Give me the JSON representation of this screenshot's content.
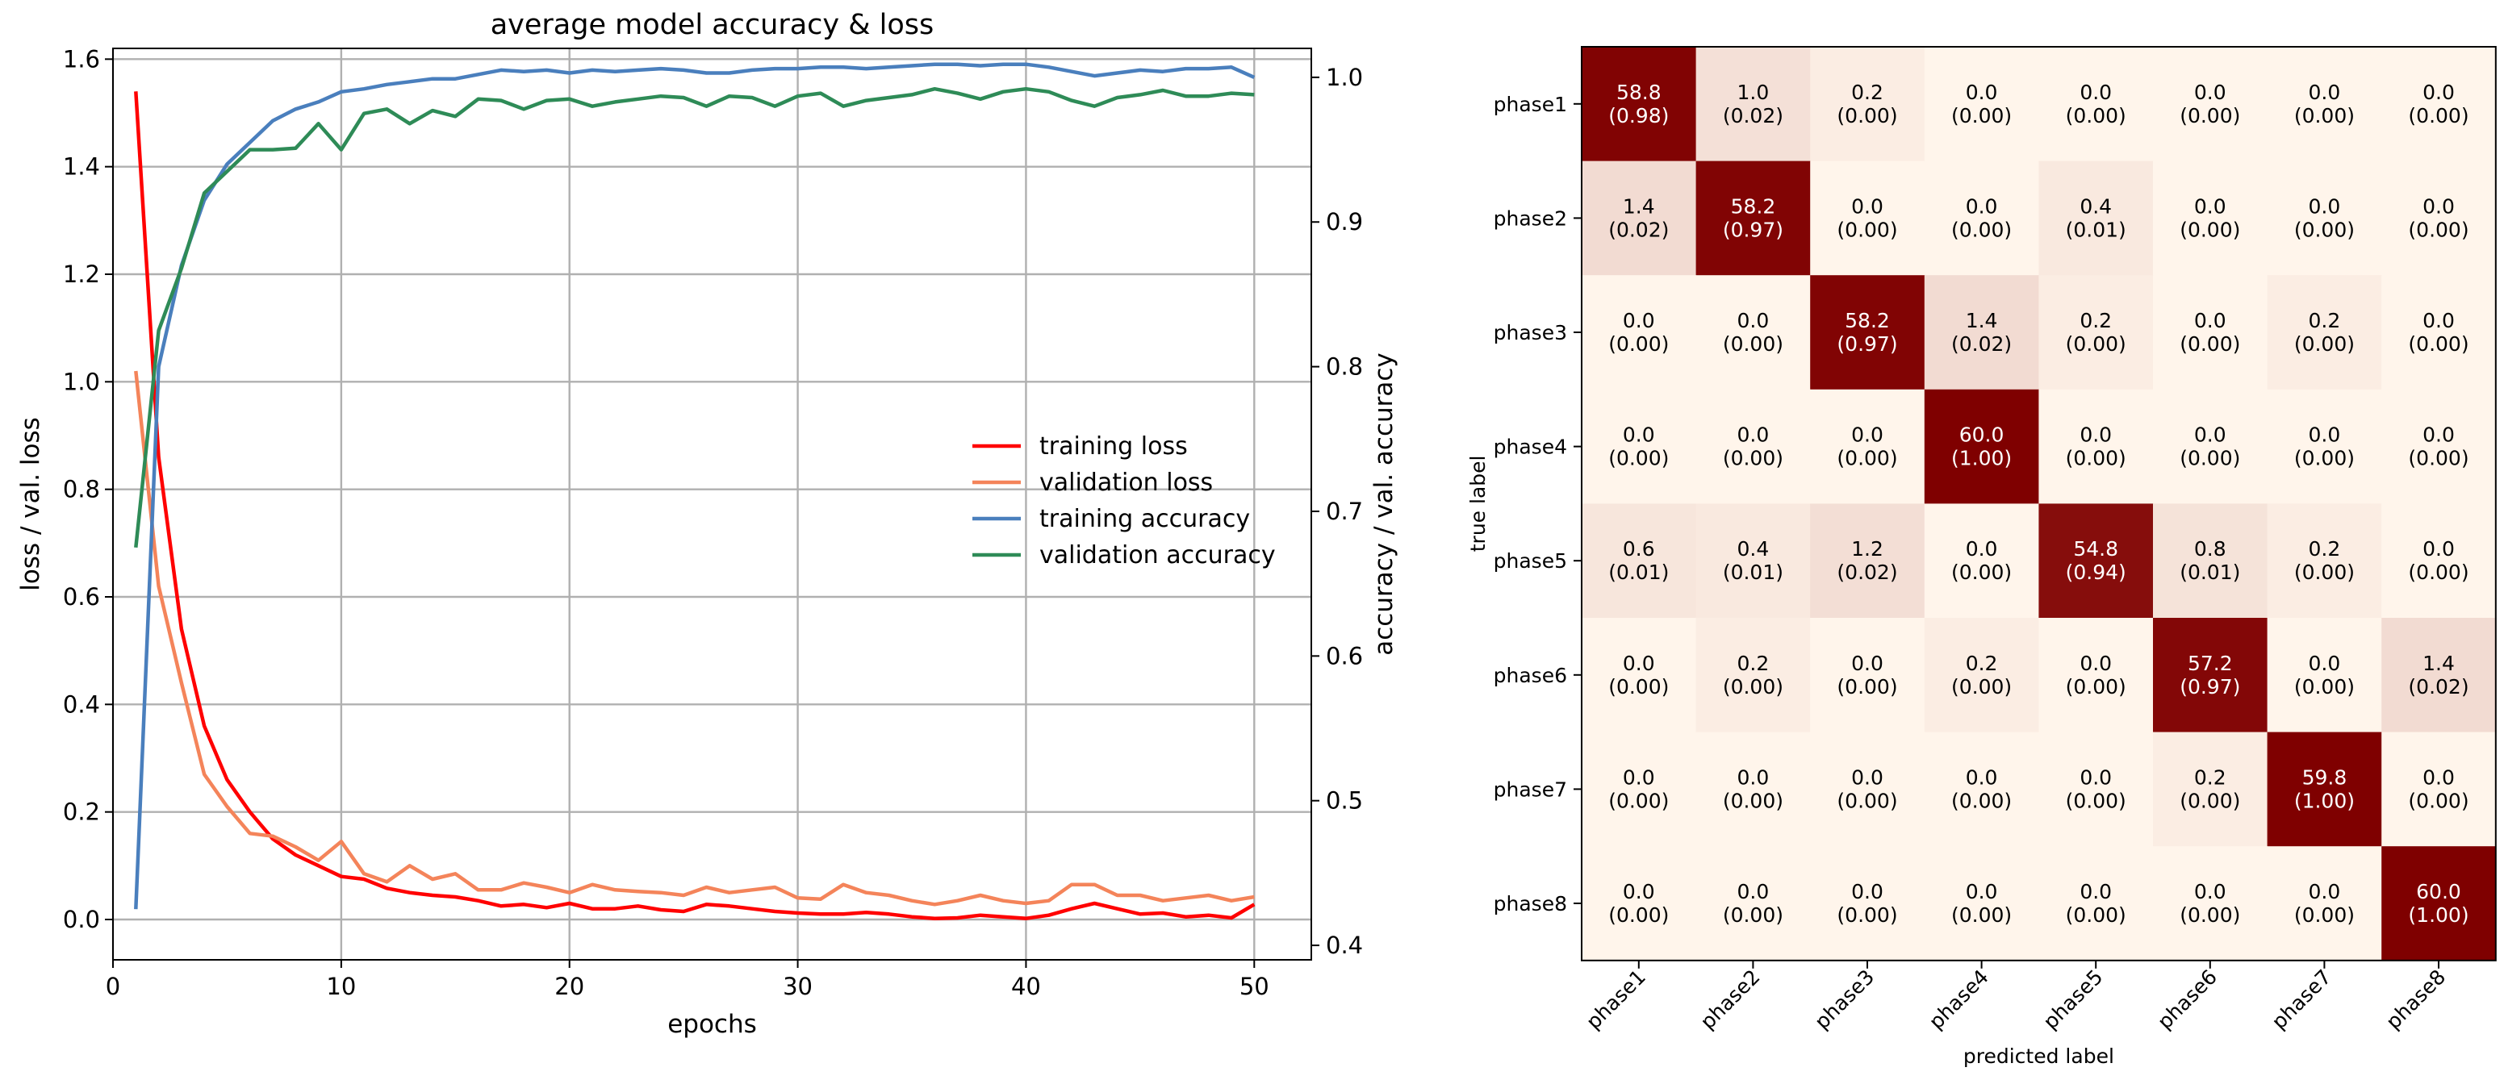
{
  "chart_data": [
    {
      "type": "line",
      "title": "average model accuracy & loss",
      "xlabel": "epochs",
      "ylabel": "loss / val. loss",
      "y2label": "accuracy / val. accuracy",
      "xlim": [
        0,
        52.5
      ],
      "ylim": [
        -0.075,
        1.62
      ],
      "y2lim": [
        0.39,
        1.02
      ],
      "xticks": [
        0,
        10,
        20,
        30,
        40,
        50
      ],
      "yticks": [
        0.0,
        0.2,
        0.4,
        0.6,
        0.8,
        1.0,
        1.2,
        1.4,
        1.6
      ],
      "y2ticks": [
        0.4,
        0.5,
        0.6,
        0.7,
        0.8,
        0.9,
        1.0
      ],
      "grid": true,
      "legend_position": "center-right",
      "x": [
        1,
        2,
        3,
        4,
        5,
        6,
        7,
        8,
        9,
        10,
        11,
        12,
        13,
        14,
        15,
        16,
        17,
        18,
        19,
        20,
        21,
        22,
        23,
        24,
        25,
        26,
        27,
        28,
        29,
        30,
        31,
        32,
        33,
        34,
        35,
        36,
        37,
        38,
        39,
        40,
        41,
        42,
        43,
        44,
        45,
        46,
        47,
        48,
        49,
        50
      ],
      "series": [
        {
          "name": "training loss",
          "axis": "left",
          "color": "#ff0000",
          "values": [
            1.54,
            0.86,
            0.54,
            0.36,
            0.26,
            0.2,
            0.15,
            0.12,
            0.1,
            0.08,
            0.075,
            0.058,
            0.05,
            0.045,
            0.042,
            0.035,
            0.025,
            0.028,
            0.022,
            0.03,
            0.02,
            0.02,
            0.025,
            0.018,
            0.015,
            0.028,
            0.025,
            0.02,
            0.015,
            0.012,
            0.01,
            0.01,
            0.013,
            0.01,
            0.005,
            0.002,
            0.003,
            0.008,
            0.005,
            0.002,
            0.008,
            0.02,
            0.03,
            0.02,
            0.01,
            0.012,
            0.005,
            0.008,
            0.003,
            0.028
          ]
        },
        {
          "name": "validation loss",
          "axis": "left",
          "color": "#f4845a",
          "values": [
            1.02,
            0.62,
            0.44,
            0.27,
            0.21,
            0.16,
            0.155,
            0.135,
            0.11,
            0.145,
            0.085,
            0.07,
            0.1,
            0.075,
            0.085,
            0.055,
            0.055,
            0.068,
            0.06,
            0.05,
            0.065,
            0.055,
            0.052,
            0.05,
            0.045,
            0.06,
            0.05,
            0.055,
            0.06,
            0.04,
            0.038,
            0.065,
            0.05,
            0.045,
            0.035,
            0.028,
            0.035,
            0.045,
            0.035,
            0.03,
            0.035,
            0.065,
            0.065,
            0.045,
            0.045,
            0.035,
            0.04,
            0.045,
            0.035,
            0.042
          ]
        },
        {
          "name": "training accuracy",
          "axis": "right",
          "color": "#4a7fbd",
          "values": [
            0.425,
            0.8,
            0.87,
            0.915,
            0.94,
            0.955,
            0.97,
            0.978,
            0.983,
            0.99,
            0.992,
            0.995,
            0.997,
            0.999,
            0.999,
            1.002,
            1.005,
            1.004,
            1.005,
            1.003,
            1.005,
            1.004,
            1.005,
            1.006,
            1.005,
            1.003,
            1.003,
            1.005,
            1.006,
            1.006,
            1.007,
            1.007,
            1.006,
            1.007,
            1.008,
            1.009,
            1.009,
            1.008,
            1.009,
            1.009,
            1.007,
            1.004,
            1.001,
            1.003,
            1.005,
            1.004,
            1.006,
            1.006,
            1.007,
            1.0
          ]
        },
        {
          "name": "validation accuracy",
          "axis": "right",
          "color": "#2e8b57",
          "values": [
            0.675,
            0.825,
            0.868,
            0.92,
            0.935,
            0.95,
            0.95,
            0.951,
            0.968,
            0.95,
            0.975,
            0.978,
            0.968,
            0.977,
            0.973,
            0.985,
            0.984,
            0.978,
            0.984,
            0.985,
            0.98,
            0.983,
            0.985,
            0.987,
            0.986,
            0.98,
            0.987,
            0.986,
            0.98,
            0.987,
            0.989,
            0.98,
            0.984,
            0.986,
            0.988,
            0.992,
            0.989,
            0.985,
            0.99,
            0.992,
            0.99,
            0.984,
            0.98,
            0.986,
            0.988,
            0.991,
            0.987,
            0.987,
            0.989,
            0.988
          ]
        }
      ]
    },
    {
      "type": "heatmap",
      "title": "",
      "xlabel": "predicted label",
      "ylabel": "true label",
      "labels": [
        "phase1",
        "phase2",
        "phase3",
        "phase4",
        "phase5",
        "phase6",
        "phase7",
        "phase8"
      ],
      "color_low": "#fff5eb",
      "color_high": "#7f0000",
      "values": [
        [
          58.8,
          1.0,
          0.2,
          0.0,
          0.0,
          0.0,
          0.0,
          0.0
        ],
        [
          1.4,
          58.2,
          0.0,
          0.0,
          0.4,
          0.0,
          0.0,
          0.0
        ],
        [
          0.0,
          0.0,
          58.2,
          1.4,
          0.2,
          0.0,
          0.2,
          0.0
        ],
        [
          0.0,
          0.0,
          0.0,
          60.0,
          0.0,
          0.0,
          0.0,
          0.0
        ],
        [
          0.6,
          0.4,
          1.2,
          0.0,
          54.8,
          0.8,
          0.2,
          0.0
        ],
        [
          0.0,
          0.2,
          0.0,
          0.2,
          0.0,
          57.2,
          0.0,
          1.4
        ],
        [
          0.0,
          0.0,
          0.0,
          0.0,
          0.0,
          0.2,
          59.8,
          0.0
        ],
        [
          0.0,
          0.0,
          0.0,
          0.0,
          0.0,
          0.0,
          0.0,
          60.0
        ]
      ],
      "normalized": [
        [
          "0.98",
          "0.02",
          "0.00",
          "0.00",
          "0.00",
          "0.00",
          "0.00",
          "0.00"
        ],
        [
          "0.02",
          "0.97",
          "0.00",
          "0.00",
          "0.01",
          "0.00",
          "0.00",
          "0.00"
        ],
        [
          "0.00",
          "0.00",
          "0.97",
          "0.02",
          "0.00",
          "0.00",
          "0.00",
          "0.00"
        ],
        [
          "0.00",
          "0.00",
          "0.00",
          "1.00",
          "0.00",
          "0.00",
          "0.00",
          "0.00"
        ],
        [
          "0.01",
          "0.01",
          "0.02",
          "0.00",
          "0.94",
          "0.01",
          "0.00",
          "0.00"
        ],
        [
          "0.00",
          "0.00",
          "0.00",
          "0.00",
          "0.00",
          "0.97",
          "0.00",
          "0.02"
        ],
        [
          "0.00",
          "0.00",
          "0.00",
          "0.00",
          "0.00",
          "0.00",
          "1.00",
          "0.00"
        ],
        [
          "0.00",
          "0.00",
          "0.00",
          "0.00",
          "0.00",
          "0.00",
          "0.00",
          "1.00"
        ]
      ]
    }
  ]
}
